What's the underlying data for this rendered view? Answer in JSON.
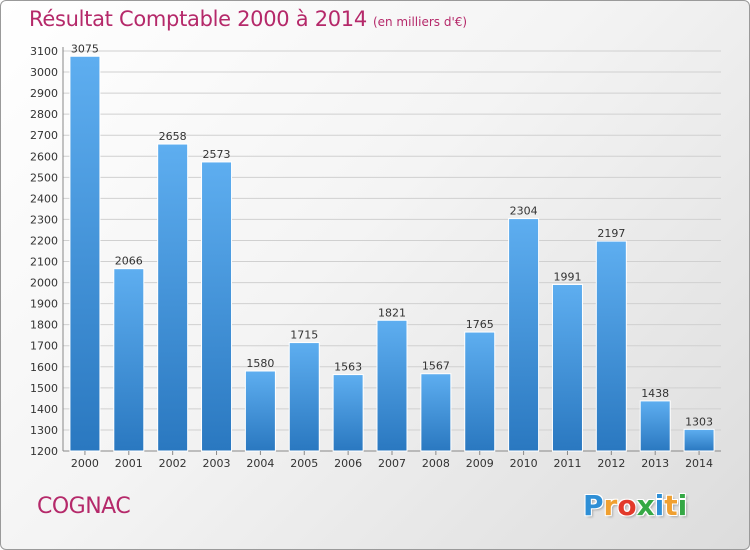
{
  "header": {
    "title": "Résultat Comptable 2000 à 2014",
    "subtitle": "(en milliers d'€)"
  },
  "footer": {
    "city": "COGNAC",
    "logo_letters": [
      "P",
      "r",
      "o",
      "x",
      "i",
      "t",
      "i"
    ],
    "logo_colors": [
      "#2e8fd6",
      "#f0a030",
      "#e23a2a",
      "#35a845",
      "#2e8fd6",
      "#f0a030",
      "#35a845"
    ]
  },
  "colors": {
    "accent": "#b5296a",
    "bar_top": "#5eaef0",
    "bar_bottom": "#2a78c0",
    "grid": "#d0d0d0"
  },
  "chart_data": {
    "type": "bar",
    "categories": [
      "2000",
      "2001",
      "2002",
      "2003",
      "2004",
      "2005",
      "2006",
      "2007",
      "2008",
      "2009",
      "2010",
      "2011",
      "2012",
      "2013",
      "2014"
    ],
    "values": [
      3075,
      2066,
      2658,
      2573,
      1580,
      1715,
      1563,
      1821,
      1567,
      1765,
      2304,
      1991,
      2197,
      1438,
      1303
    ],
    "ylim": [
      1200,
      3100
    ],
    "ytick_step": 100,
    "grid": true,
    "data_labels": true
  }
}
